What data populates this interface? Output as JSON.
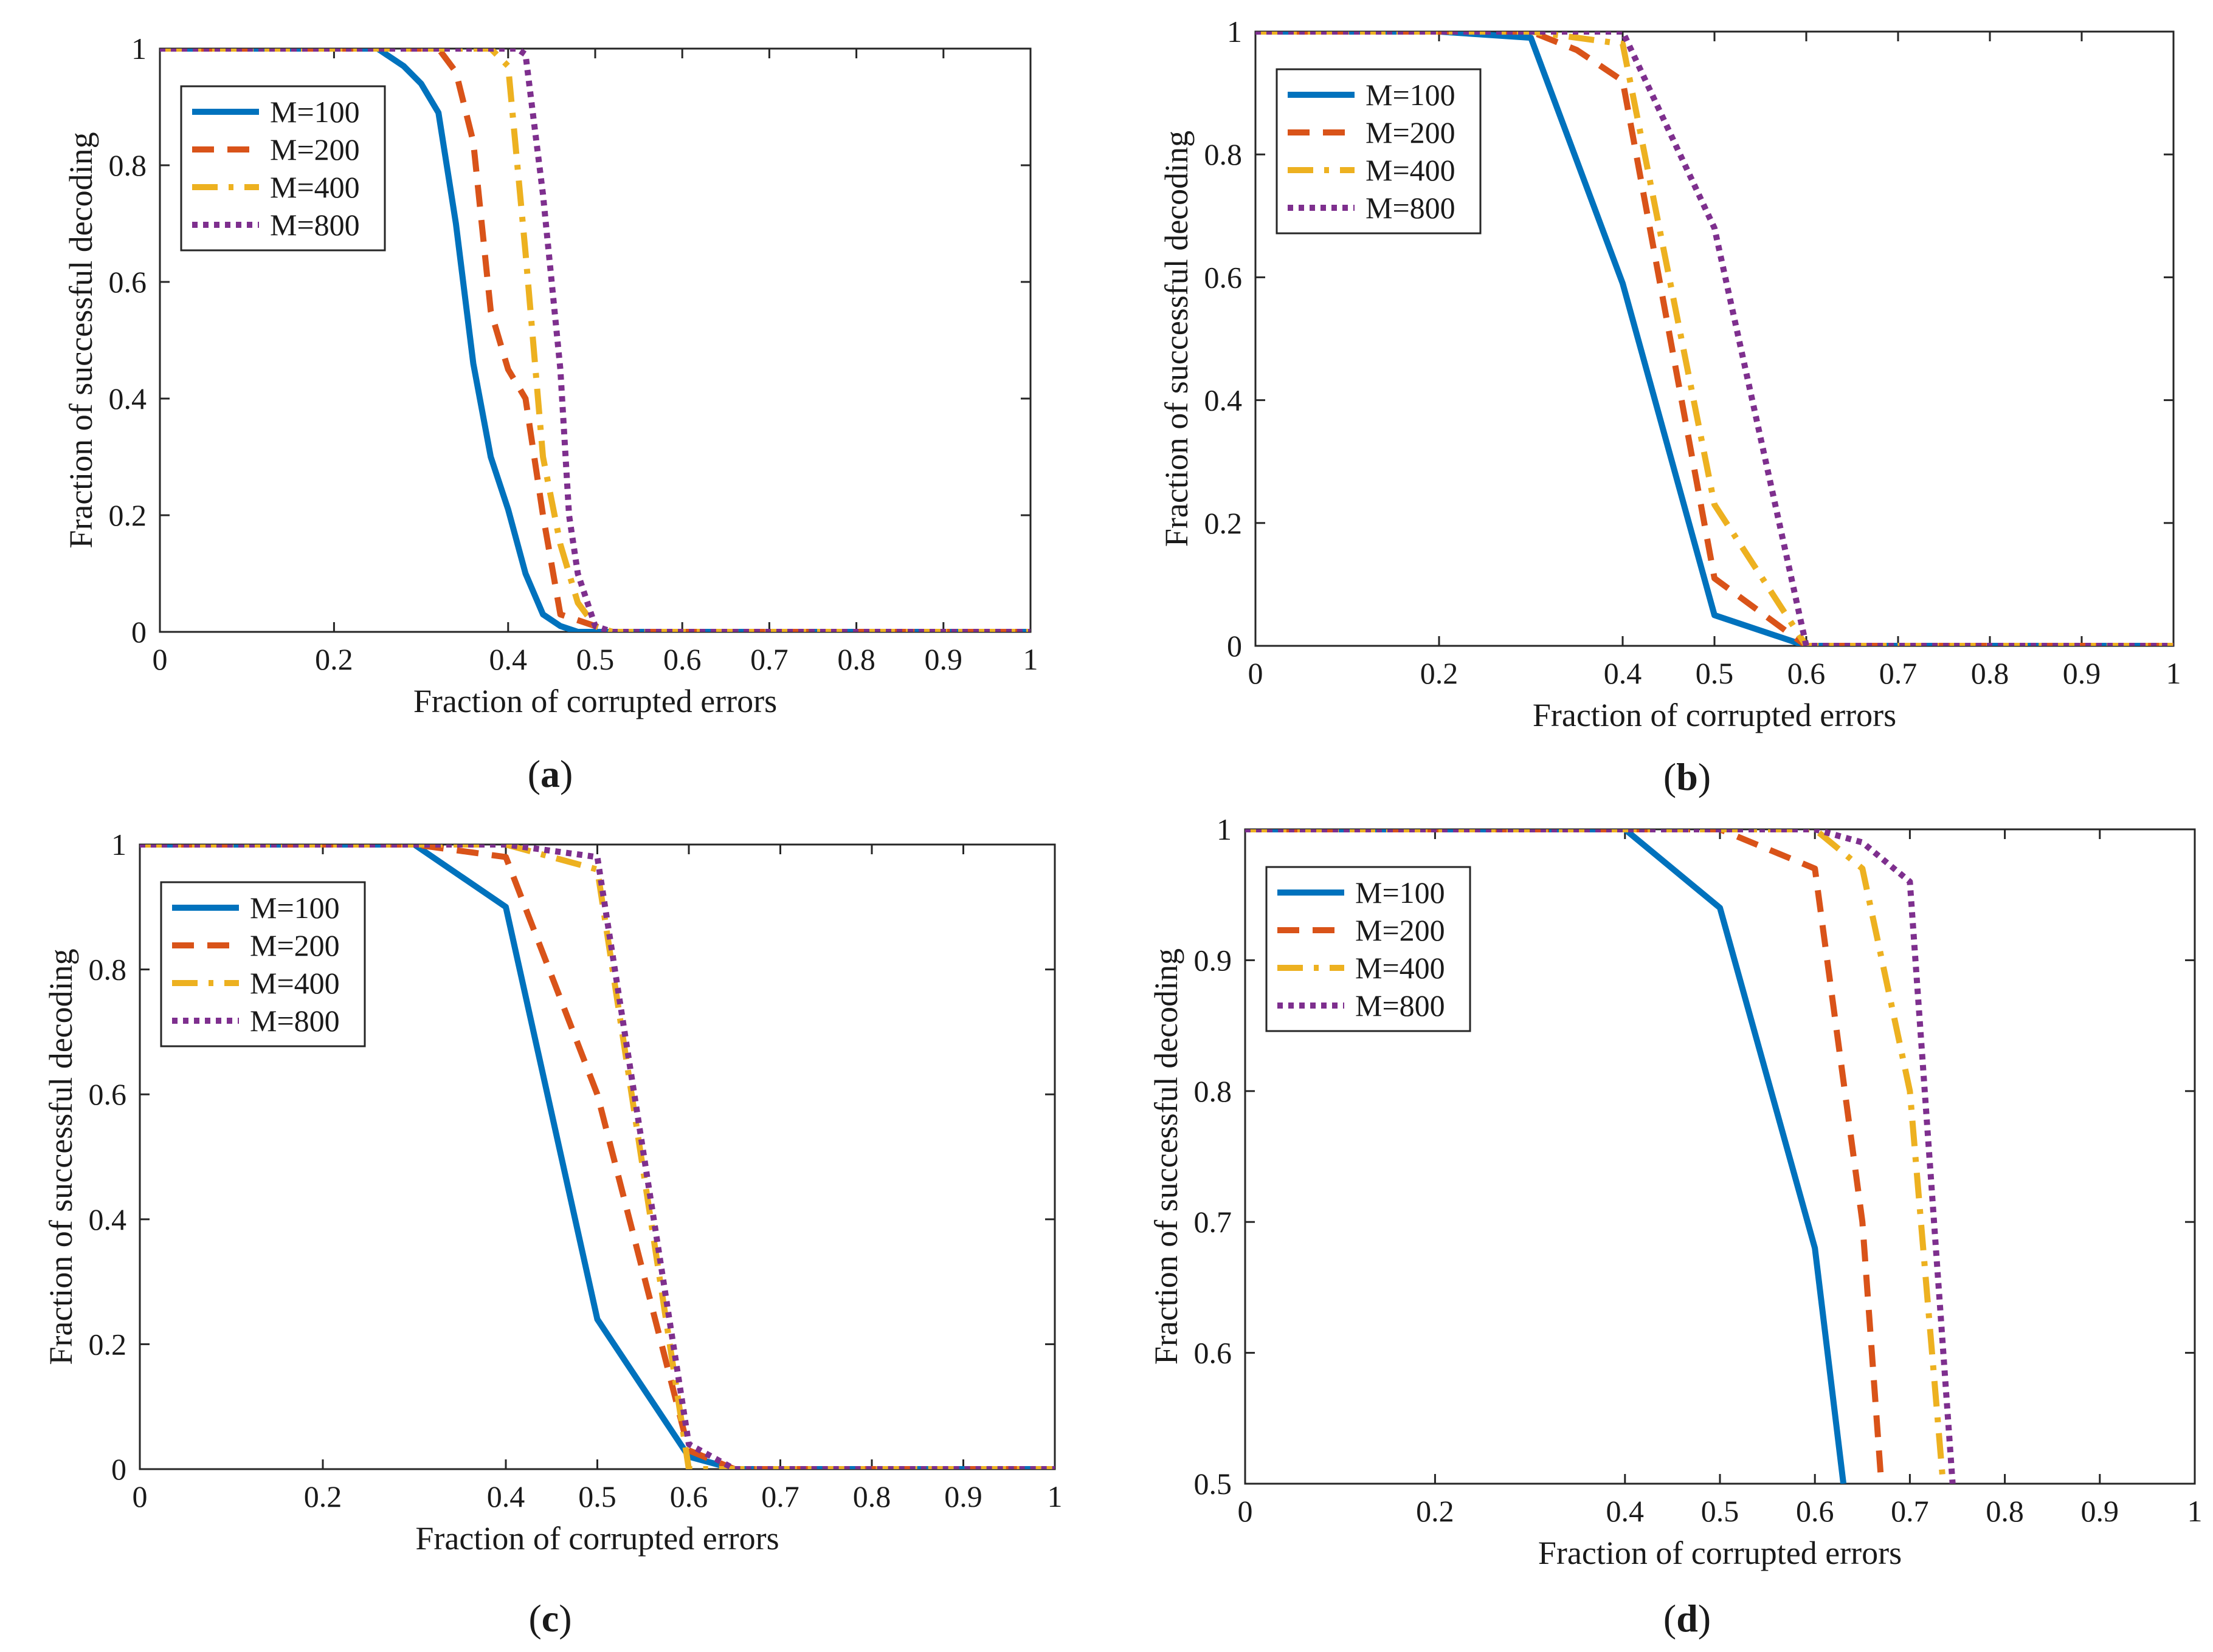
{
  "figure": {
    "series_colors": {
      "M=100": "#0072BD",
      "M=200": "#D95319",
      "M=400": "#EDB120",
      "M=800": "#7E2F8E"
    }
  },
  "chart_data": [
    {
      "type": "line",
      "panel": "a",
      "caption": {
        "open": "(",
        "letter": "a",
        "close": ")"
      },
      "xlabel": "Fraction of corrupted errors",
      "ylabel": "Fraction of successful decoding",
      "xlim": [
        0,
        1
      ],
      "ylim": [
        0,
        1
      ],
      "xticks": [
        0,
        0.2,
        0.4,
        0.5,
        0.6,
        0.7,
        0.8,
        0.9,
        1
      ],
      "xtick_labels": [
        "0",
        "0.2",
        "0.4",
        "0.5",
        "0.6",
        "0.7",
        "0.8",
        "0.9",
        "1"
      ],
      "yticks": [
        0,
        0.2,
        0.4,
        0.6,
        0.8,
        1
      ],
      "ytick_labels": [
        "0",
        "0.2",
        "0.4",
        "0.6",
        "0.8",
        "1"
      ],
      "legend": {
        "position": "top-left",
        "entries": [
          "M=100",
          "M=200",
          "M=400",
          "M=800"
        ]
      },
      "series": [
        {
          "name": "M=100",
          "style": "solid",
          "x": [
            0,
            0.25,
            0.28,
            0.3,
            0.32,
            0.34,
            0.36,
            0.38,
            0.4,
            0.42,
            0.44,
            0.46,
            0.48,
            0.5,
            1
          ],
          "y": [
            1,
            1,
            0.97,
            0.94,
            0.89,
            0.7,
            0.46,
            0.3,
            0.21,
            0.1,
            0.03,
            0.01,
            0.0,
            0,
            0
          ]
        },
        {
          "name": "M=200",
          "style": "dashed",
          "x": [
            0,
            0.32,
            0.34,
            0.36,
            0.38,
            0.4,
            0.42,
            0.44,
            0.46,
            0.48,
            0.5,
            0.52,
            1
          ],
          "y": [
            1,
            1,
            0.96,
            0.84,
            0.55,
            0.45,
            0.4,
            0.2,
            0.03,
            0.02,
            0.01,
            0,
            0
          ]
        },
        {
          "name": "M=400",
          "style": "dashdot",
          "x": [
            0,
            0.38,
            0.4,
            0.42,
            0.44,
            0.46,
            0.48,
            0.5,
            0.52,
            1
          ],
          "y": [
            1,
            1,
            0.97,
            0.65,
            0.3,
            0.15,
            0.05,
            0.01,
            0,
            0
          ]
        },
        {
          "name": "M=800",
          "style": "dotted",
          "x": [
            0,
            0.41,
            0.42,
            0.44,
            0.46,
            0.47,
            0.48,
            0.5,
            0.52,
            1
          ],
          "y": [
            1,
            1,
            0.99,
            0.75,
            0.45,
            0.2,
            0.1,
            0.01,
            0,
            0
          ]
        }
      ]
    },
    {
      "type": "line",
      "panel": "b",
      "caption": {
        "open": "(",
        "letter": "b",
        "close": ")"
      },
      "xlabel": "Fraction of corrupted errors",
      "ylabel": "Fraction of successful decoding",
      "xlim": [
        0,
        1
      ],
      "ylim": [
        0,
        1
      ],
      "xticks": [
        0,
        0.2,
        0.4,
        0.5,
        0.6,
        0.7,
        0.8,
        0.9,
        1
      ],
      "xtick_labels": [
        "0",
        "0.2",
        "0.4",
        "0.5",
        "0.6",
        "0.7",
        "0.8",
        "0.9",
        "1"
      ],
      "yticks": [
        0,
        0.2,
        0.4,
        0.6,
        0.8,
        1
      ],
      "ytick_labels": [
        "0",
        "0.2",
        "0.4",
        "0.6",
        "0.8",
        "1"
      ],
      "legend": {
        "position": "top-left",
        "entries": [
          "M=100",
          "M=200",
          "M=400",
          "M=800"
        ]
      },
      "series": [
        {
          "name": "M=100",
          "style": "solid",
          "x": [
            0,
            0.2,
            0.3,
            0.4,
            0.5,
            0.6,
            1
          ],
          "y": [
            1,
            1,
            0.99,
            0.59,
            0.05,
            0,
            0
          ]
        },
        {
          "name": "M=200",
          "style": "dashed",
          "x": [
            0,
            0.3,
            0.35,
            0.4,
            0.5,
            0.6,
            1
          ],
          "y": [
            1,
            1,
            0.97,
            0.92,
            0.11,
            0,
            0
          ]
        },
        {
          "name": "M=400",
          "style": "dashdot",
          "x": [
            0,
            0.3,
            0.4,
            0.5,
            0.6,
            1
          ],
          "y": [
            1,
            1,
            0.98,
            0.23,
            0,
            0
          ]
        },
        {
          "name": "M=800",
          "style": "dotted",
          "x": [
            0,
            0.35,
            0.4,
            0.5,
            0.6,
            1
          ],
          "y": [
            1,
            1,
            1,
            0.68,
            0,
            0
          ]
        }
      ]
    },
    {
      "type": "line",
      "panel": "c",
      "caption": {
        "open": "(",
        "letter": "c",
        "close": ")"
      },
      "xlabel": "Fraction of corrupted errors",
      "ylabel": "Fraction of successful decoding",
      "xlim": [
        0,
        1
      ],
      "ylim": [
        0,
        1
      ],
      "xticks": [
        0,
        0.2,
        0.4,
        0.5,
        0.6,
        0.7,
        0.8,
        0.9,
        1
      ],
      "xtick_labels": [
        "0",
        "0.2",
        "0.4",
        "0.5",
        "0.6",
        "0.7",
        "0.8",
        "0.9",
        "1"
      ],
      "yticks": [
        0,
        0.2,
        0.4,
        0.6,
        0.8,
        1
      ],
      "ytick_labels": [
        "0",
        "0.2",
        "0.4",
        "0.6",
        "0.8",
        "1"
      ],
      "legend": {
        "position": "top-left",
        "entries": [
          "M=100",
          "M=200",
          "M=400",
          "M=800"
        ]
      },
      "series": [
        {
          "name": "M=100",
          "style": "solid",
          "x": [
            0,
            0.3,
            0.4,
            0.5,
            0.6,
            0.65,
            1
          ],
          "y": [
            1,
            1,
            0.9,
            0.24,
            0.02,
            0,
            0
          ]
        },
        {
          "name": "M=200",
          "style": "dashed",
          "x": [
            0,
            0.3,
            0.35,
            0.4,
            0.5,
            0.6,
            0.65,
            1
          ],
          "y": [
            1,
            1,
            0.99,
            0.98,
            0.6,
            0.03,
            0,
            0
          ]
        },
        {
          "name": "M=400",
          "style": "dashdot",
          "x": [
            0,
            0.4,
            0.5,
            0.6,
            0.65,
            1
          ],
          "y": [
            1,
            1,
            0.96,
            0,
            0,
            0
          ]
        },
        {
          "name": "M=800",
          "style": "dotted",
          "x": [
            0,
            0.4,
            0.5,
            0.6,
            0.65,
            1
          ],
          "y": [
            1,
            1,
            0.98,
            0.04,
            0,
            0
          ]
        }
      ]
    },
    {
      "type": "line",
      "panel": "d",
      "caption": {
        "open": "(",
        "letter": "d",
        "close": ")"
      },
      "xlabel": "Fraction of corrupted errors",
      "ylabel": "Fraction of successful decoding",
      "xlim": [
        0,
        1
      ],
      "ylim": [
        0.5,
        1
      ],
      "xticks": [
        0,
        0.2,
        0.4,
        0.5,
        0.6,
        0.7,
        0.8,
        0.9,
        1
      ],
      "xtick_labels": [
        "0",
        "0.2",
        "0.4",
        "0.5",
        "0.6",
        "0.7",
        "0.8",
        "0.9",
        "1"
      ],
      "yticks": [
        0.5,
        0.6,
        0.7,
        0.8,
        0.9,
        1
      ],
      "ytick_labels": [
        "0.5",
        "0.6",
        "0.7",
        "0.8",
        "0.9",
        "1"
      ],
      "legend": {
        "position": "top-left",
        "entries": [
          "M=100",
          "M=200",
          "M=400",
          "M=800"
        ]
      },
      "series": [
        {
          "name": "M=100",
          "style": "solid",
          "x": [
            0,
            0.4,
            0.5,
            0.6,
            0.63
          ],
          "y": [
            1,
            1,
            0.94,
            0.68,
            0.5
          ]
        },
        {
          "name": "M=200",
          "style": "dashed",
          "x": [
            0,
            0.5,
            0.6,
            0.65,
            0.67
          ],
          "y": [
            1,
            1,
            0.97,
            0.7,
            0.5
          ]
        },
        {
          "name": "M=400",
          "style": "dashdot",
          "x": [
            0,
            0.6,
            0.65,
            0.7,
            0.735
          ],
          "y": [
            1,
            1,
            0.97,
            0.8,
            0.5
          ]
        },
        {
          "name": "M=800",
          "style": "dotted",
          "x": [
            0,
            0.6,
            0.65,
            0.7,
            0.745
          ],
          "y": [
            1,
            1,
            0.99,
            0.96,
            0.5
          ]
        }
      ]
    }
  ]
}
